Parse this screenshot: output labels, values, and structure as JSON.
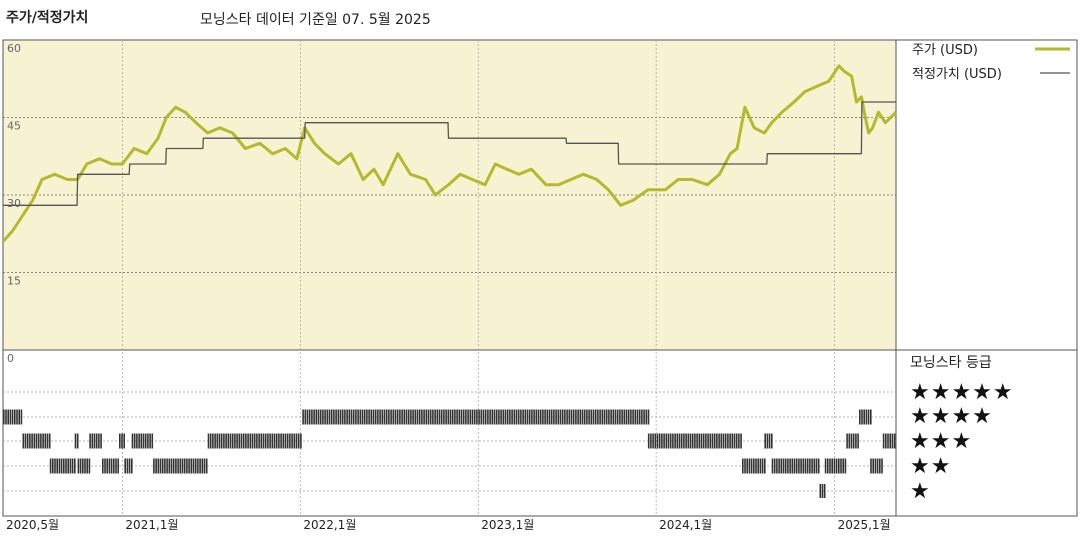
{
  "header": {
    "title": "주가/적정가치",
    "subtitle": "모닝스타 데이터 기준일 07. 5월 2025"
  },
  "colors": {
    "price_line": "#b5b92e",
    "fair_value_line": "#555555",
    "price_panel_bg": "#f7f3d2",
    "rating_bar": "#333333"
  },
  "legend": {
    "price_label": "주가 (USD)",
    "fair_value_label": "적정가치 (USD)"
  },
  "rating_panel": {
    "title": "모닝스타 등급",
    "levels": [
      "★★★★★",
      "★★★★",
      "★★★",
      "★★",
      "★"
    ]
  },
  "chart_data": {
    "type": "line",
    "x_type": "date",
    "x_range": [
      "2020-05-01",
      "2025-05-07"
    ],
    "ylim": [
      0,
      60
    ],
    "y_ticks": [
      "60",
      "45",
      "30",
      "15",
      "0"
    ],
    "y_tick_values": [
      60,
      45,
      30,
      15,
      0
    ],
    "x_tick_labels": [
      "2020,5월",
      "2021,1월",
      "2022,1월",
      "2023,1월",
      "2024,1월",
      "2025,1월"
    ],
    "x_tick_dates": [
      "2020-05-01",
      "2021-01-01",
      "2022-01-01",
      "2023-01-01",
      "2024-01-01",
      "2025-01-01"
    ],
    "series": [
      {
        "name": "주가 (USD)",
        "points": [
          [
            "2020-05-01",
            21
          ],
          [
            "2020-05-20",
            23
          ],
          [
            "2020-06-10",
            26
          ],
          [
            "2020-07-01",
            29
          ],
          [
            "2020-07-20",
            33
          ],
          [
            "2020-08-15",
            34
          ],
          [
            "2020-09-10",
            33
          ],
          [
            "2020-10-01",
            33
          ],
          [
            "2020-10-20",
            36
          ],
          [
            "2020-11-15",
            37
          ],
          [
            "2020-12-10",
            36
          ],
          [
            "2021-01-01",
            36
          ],
          [
            "2021-01-25",
            39
          ],
          [
            "2021-02-20",
            38
          ],
          [
            "2021-03-15",
            41
          ],
          [
            "2021-04-01",
            45
          ],
          [
            "2021-04-20",
            47
          ],
          [
            "2021-05-10",
            46
          ],
          [
            "2021-06-01",
            44
          ],
          [
            "2021-06-25",
            42
          ],
          [
            "2021-07-20",
            43
          ],
          [
            "2021-08-15",
            42
          ],
          [
            "2021-09-10",
            39
          ],
          [
            "2021-10-10",
            40
          ],
          [
            "2021-11-05",
            38
          ],
          [
            "2021-12-01",
            39
          ],
          [
            "2021-12-25",
            37
          ],
          [
            "2022-01-10",
            43
          ],
          [
            "2022-01-30",
            40
          ],
          [
            "2022-02-20",
            38
          ],
          [
            "2022-03-20",
            36
          ],
          [
            "2022-04-15",
            38
          ],
          [
            "2022-05-10",
            33
          ],
          [
            "2022-06-01",
            35
          ],
          [
            "2022-06-20",
            32
          ],
          [
            "2022-07-20",
            38
          ],
          [
            "2022-08-15",
            34
          ],
          [
            "2022-09-15",
            33
          ],
          [
            "2022-10-05",
            30
          ],
          [
            "2022-11-01",
            32
          ],
          [
            "2022-11-25",
            34
          ],
          [
            "2022-12-20",
            33
          ],
          [
            "2023-01-15",
            32
          ],
          [
            "2023-02-05",
            36
          ],
          [
            "2023-03-01",
            35
          ],
          [
            "2023-03-25",
            34
          ],
          [
            "2023-04-20",
            35
          ],
          [
            "2023-05-20",
            32
          ],
          [
            "2023-06-15",
            32
          ],
          [
            "2023-07-10",
            33
          ],
          [
            "2023-08-05",
            34
          ],
          [
            "2023-09-01",
            33
          ],
          [
            "2023-09-25",
            31
          ],
          [
            "2023-10-20",
            28
          ],
          [
            "2023-11-15",
            29
          ],
          [
            "2023-12-15",
            31
          ],
          [
            "2024-01-20",
            31
          ],
          [
            "2024-02-15",
            33
          ],
          [
            "2024-03-15",
            33
          ],
          [
            "2024-04-15",
            32
          ],
          [
            "2024-05-10",
            34
          ],
          [
            "2024-06-01",
            38
          ],
          [
            "2024-06-15",
            39
          ],
          [
            "2024-07-01",
            47
          ],
          [
            "2024-07-20",
            43
          ],
          [
            "2024-08-10",
            42
          ],
          [
            "2024-08-25",
            44
          ],
          [
            "2024-09-15",
            46
          ],
          [
            "2024-10-10",
            48
          ],
          [
            "2024-11-01",
            50
          ],
          [
            "2024-11-25",
            51
          ],
          [
            "2024-12-20",
            52
          ],
          [
            "2025-01-10",
            55
          ],
          [
            "2025-01-20",
            54
          ],
          [
            "2025-02-05",
            53
          ],
          [
            "2025-02-15",
            48
          ],
          [
            "2025-02-25",
            49
          ],
          [
            "2025-03-05",
            45
          ],
          [
            "2025-03-12",
            42
          ],
          [
            "2025-03-20",
            43
          ],
          [
            "2025-04-01",
            46
          ],
          [
            "2025-04-15",
            44
          ],
          [
            "2025-05-07",
            46
          ]
        ]
      },
      {
        "name": "적정가치 (USD)",
        "points": [
          [
            "2020-05-01",
            28
          ],
          [
            "2020-09-30",
            28
          ],
          [
            "2020-10-01",
            34
          ],
          [
            "2021-01-15",
            34
          ],
          [
            "2021-01-16",
            36
          ],
          [
            "2021-03-31",
            36
          ],
          [
            "2021-04-01",
            39
          ],
          [
            "2021-06-15",
            39
          ],
          [
            "2021-06-16",
            41
          ],
          [
            "2022-01-10",
            41
          ],
          [
            "2022-01-11",
            44
          ],
          [
            "2022-10-31",
            44
          ],
          [
            "2022-11-01",
            41
          ],
          [
            "2023-06-30",
            41
          ],
          [
            "2023-07-01",
            40
          ],
          [
            "2023-10-15",
            40
          ],
          [
            "2023-10-16",
            36
          ],
          [
            "2024-08-15",
            36
          ],
          [
            "2024-08-16",
            38
          ],
          [
            "2025-02-25",
            38
          ],
          [
            "2025-02-26",
            48
          ],
          [
            "2025-05-07",
            48
          ]
        ]
      }
    ],
    "rating_history": [
      {
        "stars": 4,
        "start": "2020-05-01",
        "end": "2020-06-10"
      },
      {
        "stars": 3,
        "start": "2020-06-10",
        "end": "2020-08-05"
      },
      {
        "stars": 2,
        "start": "2020-08-05",
        "end": "2020-09-25"
      },
      {
        "stars": 3,
        "start": "2020-09-25",
        "end": "2020-10-01"
      },
      {
        "stars": 2,
        "start": "2020-10-01",
        "end": "2020-10-25"
      },
      {
        "stars": 3,
        "start": "2020-10-25",
        "end": "2020-11-20"
      },
      {
        "stars": 2,
        "start": "2020-11-20",
        "end": "2020-12-25"
      },
      {
        "stars": 3,
        "start": "2020-12-25",
        "end": "2021-01-05"
      },
      {
        "stars": 2,
        "start": "2021-01-05",
        "end": "2021-01-20"
      },
      {
        "stars": 3,
        "start": "2021-01-20",
        "end": "2021-03-05"
      },
      {
        "stars": 2,
        "start": "2021-03-05",
        "end": "2021-06-25"
      },
      {
        "stars": 3,
        "start": "2021-06-25",
        "end": "2022-01-05"
      },
      {
        "stars": 4,
        "start": "2022-01-05",
        "end": "2023-12-15"
      },
      {
        "stars": 3,
        "start": "2023-12-15",
        "end": "2024-06-25"
      },
      {
        "stars": 2,
        "start": "2024-06-25",
        "end": "2024-08-10"
      },
      {
        "stars": 3,
        "start": "2024-08-10",
        "end": "2024-08-25"
      },
      {
        "stars": 2,
        "start": "2024-08-25",
        "end": "2024-12-01"
      },
      {
        "stars": 1,
        "start": "2024-12-01",
        "end": "2024-12-12"
      },
      {
        "stars": 2,
        "start": "2024-12-12",
        "end": "2025-01-25"
      },
      {
        "stars": 3,
        "start": "2025-01-25",
        "end": "2025-02-20"
      },
      {
        "stars": 4,
        "start": "2025-02-20",
        "end": "2025-03-15"
      },
      {
        "stars": 2,
        "start": "2025-03-15",
        "end": "2025-04-10"
      },
      {
        "stars": 3,
        "start": "2025-04-10",
        "end": "2025-05-07"
      }
    ]
  }
}
